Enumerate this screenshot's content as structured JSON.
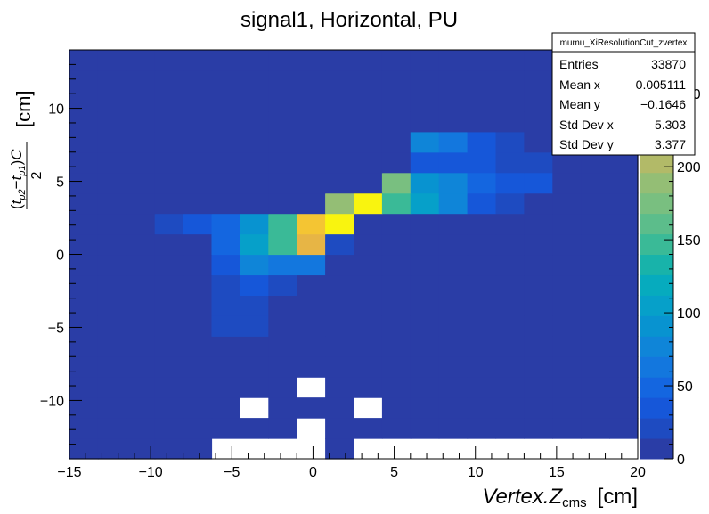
{
  "chart_data": {
    "type": "heatmap",
    "title": "signal1, Horizontal, PU",
    "xlabel": "Vertex.Z_cms   [cm]",
    "xlabel_parts": {
      "main": "Vertex.Z",
      "sub": "cms",
      "unit": "[cm]"
    },
    "ylabel": "(t_p2 − t_p1)C / 2   [cm]",
    "ylabel_parts": {
      "t2": "t",
      "t2sub": "p2",
      "minus": "−",
      "t1": "t",
      "t1sub": "p1",
      "c": "C",
      "den": "2",
      "unit": "[cm]"
    },
    "xlim": [
      -15,
      20
    ],
    "ylim": [
      -14,
      14
    ],
    "x_ticks": [
      "−15",
      "−10",
      "−5",
      "0",
      "5",
      "10",
      "15",
      "20"
    ],
    "y_ticks": [
      "−10",
      "−5",
      "0",
      "5",
      "10"
    ],
    "colorbar": {
      "min": 0,
      "max": 280,
      "ticks": [
        "0",
        "50",
        "100",
        "150",
        "200",
        "250"
      ]
    },
    "binning": {
      "x_start": -15,
      "x_width": 1.75,
      "nx": 20,
      "y_start": -14,
      "y_width": 1.4,
      "ny": 20
    },
    "bins_y_from_bottom": [
      [
        4,
        4,
        4,
        4,
        4,
        0,
        0,
        0,
        0,
        4,
        0,
        0,
        0,
        0,
        0,
        0,
        0,
        0,
        0,
        0
      ],
      [
        4,
        4,
        4,
        4,
        4,
        4,
        4,
        4,
        0,
        4,
        4,
        4,
        4,
        4,
        4,
        4,
        4,
        4,
        4,
        4
      ],
      [
        4,
        4,
        4,
        4,
        4,
        4,
        0,
        4,
        4,
        4,
        0,
        4,
        4,
        4,
        4,
        4,
        4,
        4,
        4,
        4
      ],
      [
        4,
        4,
        4,
        4,
        4,
        4,
        4,
        4,
        0,
        4,
        4,
        4,
        4,
        4,
        4,
        4,
        4,
        4,
        4,
        4
      ],
      [
        4,
        4,
        4,
        4,
        4,
        4,
        4,
        4,
        4,
        4,
        4,
        4,
        4,
        4,
        4,
        4,
        4,
        4,
        4,
        4
      ],
      [
        4,
        4,
        4,
        4,
        4,
        4,
        10,
        4,
        4,
        4,
        4,
        4,
        4,
        4,
        4,
        4,
        4,
        4,
        4,
        4
      ],
      [
        4,
        4,
        4,
        4,
        4,
        14,
        14,
        4,
        4,
        4,
        4,
        4,
        4,
        4,
        4,
        4,
        4,
        4,
        4,
        4
      ],
      [
        4,
        4,
        4,
        4,
        10,
        20,
        20,
        4,
        4,
        4,
        4,
        4,
        4,
        4,
        4,
        4,
        4,
        4,
        4,
        4
      ],
      [
        4,
        4,
        4,
        4,
        4,
        25,
        30,
        14,
        4,
        4,
        4,
        4,
        4,
        4,
        4,
        4,
        4,
        4,
        4,
        4
      ],
      [
        4,
        4,
        4,
        4,
        4,
        30,
        70,
        65,
        60,
        4,
        4,
        4,
        4,
        4,
        4,
        4,
        4,
        4,
        4,
        4
      ],
      [
        4,
        4,
        4,
        10,
        4,
        45,
        105,
        140,
        225,
        14,
        4,
        4,
        4,
        4,
        4,
        4,
        4,
        4,
        4,
        4
      ],
      [
        4,
        4,
        4,
        20,
        30,
        50,
        90,
        150,
        245,
        280,
        4,
        4,
        4,
        4,
        4,
        4,
        4,
        4,
        4,
        4
      ],
      [
        4,
        4,
        4,
        4,
        4,
        4,
        4,
        4,
        4,
        190,
        270,
        150,
        110,
        70,
        40,
        20,
        4,
        4,
        4,
        4
      ],
      [
        4,
        4,
        4,
        4,
        4,
        4,
        4,
        4,
        4,
        4,
        4,
        170,
        90,
        80,
        50,
        40,
        30,
        4,
        4,
        4
      ],
      [
        4,
        4,
        4,
        4,
        4,
        4,
        4,
        4,
        4,
        4,
        4,
        4,
        30,
        40,
        30,
        25,
        20,
        4,
        4,
        4
      ],
      [
        4,
        4,
        4,
        4,
        4,
        4,
        4,
        4,
        4,
        4,
        4,
        4,
        75,
        65,
        35,
        20,
        10,
        4,
        4,
        4
      ],
      [
        4,
        4,
        4,
        4,
        4,
        4,
        4,
        4,
        4,
        4,
        4,
        4,
        4,
        4,
        4,
        10,
        4,
        4,
        4,
        4
      ],
      [
        4,
        4,
        4,
        4,
        4,
        4,
        4,
        4,
        4,
        4,
        4,
        4,
        4,
        4,
        4,
        4,
        4,
        4,
        4,
        4
      ],
      [
        4,
        4,
        4,
        4,
        4,
        4,
        4,
        4,
        4,
        4,
        4,
        4,
        4,
        4,
        4,
        4,
        4,
        4,
        4,
        4
      ],
      [
        4,
        4,
        4,
        4,
        4,
        4,
        4,
        4,
        4,
        4,
        4,
        4,
        4,
        4,
        4,
        4,
        4,
        4,
        4,
        4
      ]
    ],
    "stats_box": {
      "name": "mumu_XiResolutionCut_zvertex",
      "rows": [
        {
          "label": "Entries",
          "value": "33870"
        },
        {
          "label": "Mean x",
          "value": "0.005111"
        },
        {
          "label": "Mean y",
          "value": "−0.1646"
        },
        {
          "label": "Std Dev x",
          "value": "5.303"
        },
        {
          "label": "Std Dev y",
          "value": "3.377"
        }
      ]
    },
    "palette": [
      "#2a3da6",
      "#1e4bc1",
      "#1657d9",
      "#1466e0",
      "#1377de",
      "#0f85d8",
      "#0893d0",
      "#06a0c9",
      "#06abbe",
      "#18b3aa",
      "#3aba97",
      "#5cbd8b",
      "#79bf80",
      "#94be75",
      "#b2ba68",
      "#cfb65a",
      "#e7b545",
      "#f4c533",
      "#f7dd22",
      "#f9f40f"
    ]
  }
}
